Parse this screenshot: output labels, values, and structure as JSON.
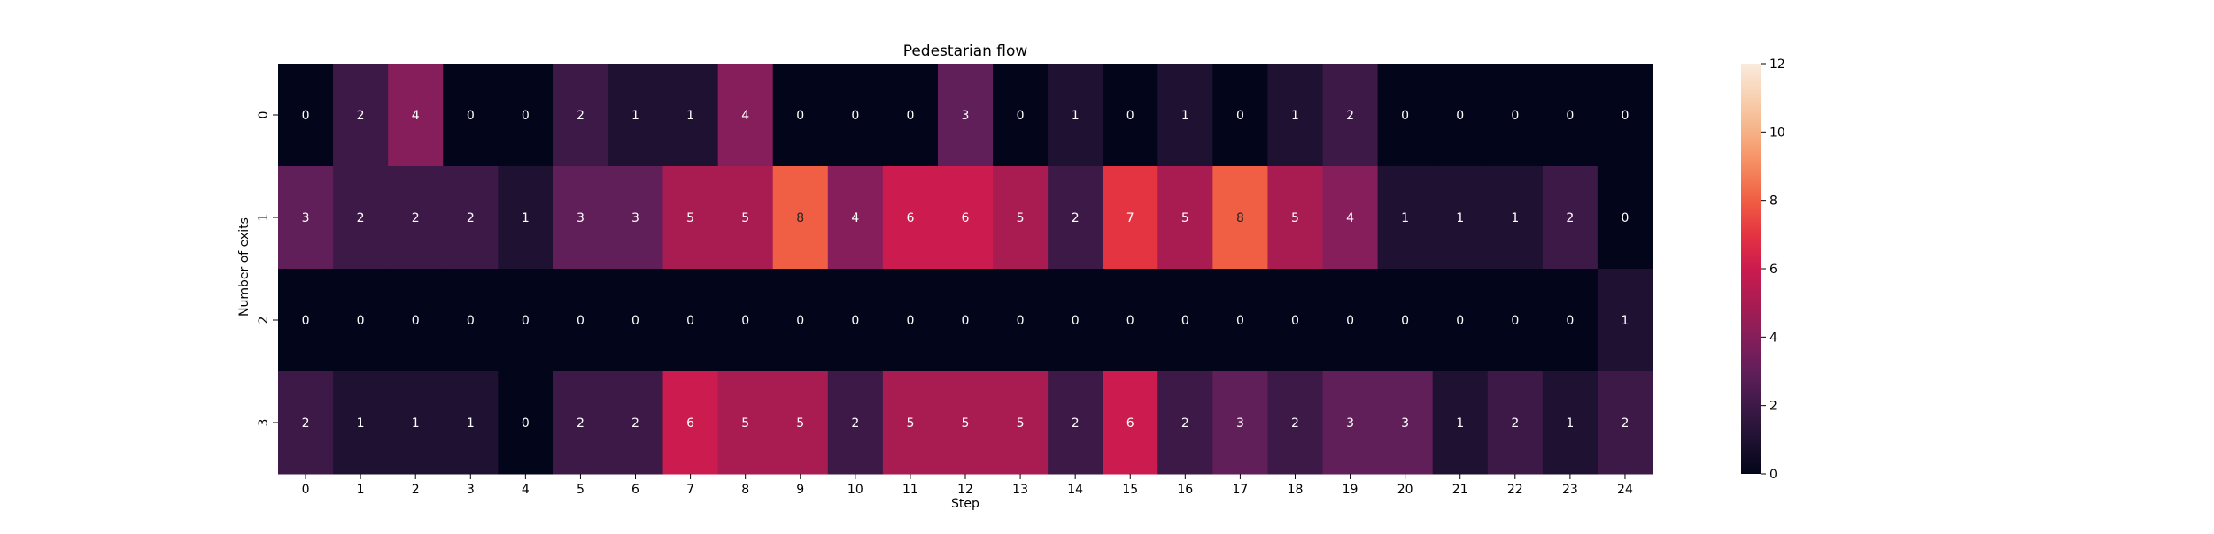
{
  "chart_data": {
    "type": "heatmap",
    "title": "Pedestarian flow",
    "xlabel": "Step",
    "ylabel": "Number of exits",
    "x_ticks": [
      "0",
      "1",
      "2",
      "3",
      "4",
      "5",
      "6",
      "7",
      "8",
      "9",
      "10",
      "11",
      "12",
      "13",
      "14",
      "15",
      "16",
      "17",
      "18",
      "19",
      "20",
      "21",
      "22",
      "23",
      "24"
    ],
    "y_ticks": [
      "0",
      "1",
      "2",
      "3"
    ],
    "values": [
      [
        0,
        2,
        4,
        0,
        0,
        2,
        1,
        1,
        4,
        0,
        0,
        0,
        3,
        0,
        1,
        0,
        1,
        0,
        1,
        2,
        0,
        0,
        0,
        0,
        0
      ],
      [
        3,
        2,
        2,
        2,
        1,
        3,
        3,
        5,
        5,
        8,
        4,
        6,
        6,
        5,
        2,
        7,
        5,
        8,
        5,
        4,
        1,
        1,
        1,
        2,
        0
      ],
      [
        0,
        0,
        0,
        0,
        0,
        0,
        0,
        0,
        0,
        0,
        0,
        0,
        0,
        0,
        0,
        0,
        0,
        0,
        0,
        0,
        0,
        0,
        0,
        0,
        1
      ],
      [
        2,
        1,
        1,
        1,
        0,
        2,
        2,
        6,
        5,
        5,
        2,
        5,
        5,
        5,
        2,
        6,
        2,
        3,
        2,
        3,
        3,
        1,
        2,
        1,
        2
      ]
    ],
    "annotate": true,
    "colormap": "rocket",
    "colorbar": {
      "range": [
        0,
        12
      ],
      "ticks": [
        "0",
        "2",
        "4",
        "6",
        "8",
        "10",
        "12"
      ],
      "position": "right"
    },
    "grid": false
  }
}
